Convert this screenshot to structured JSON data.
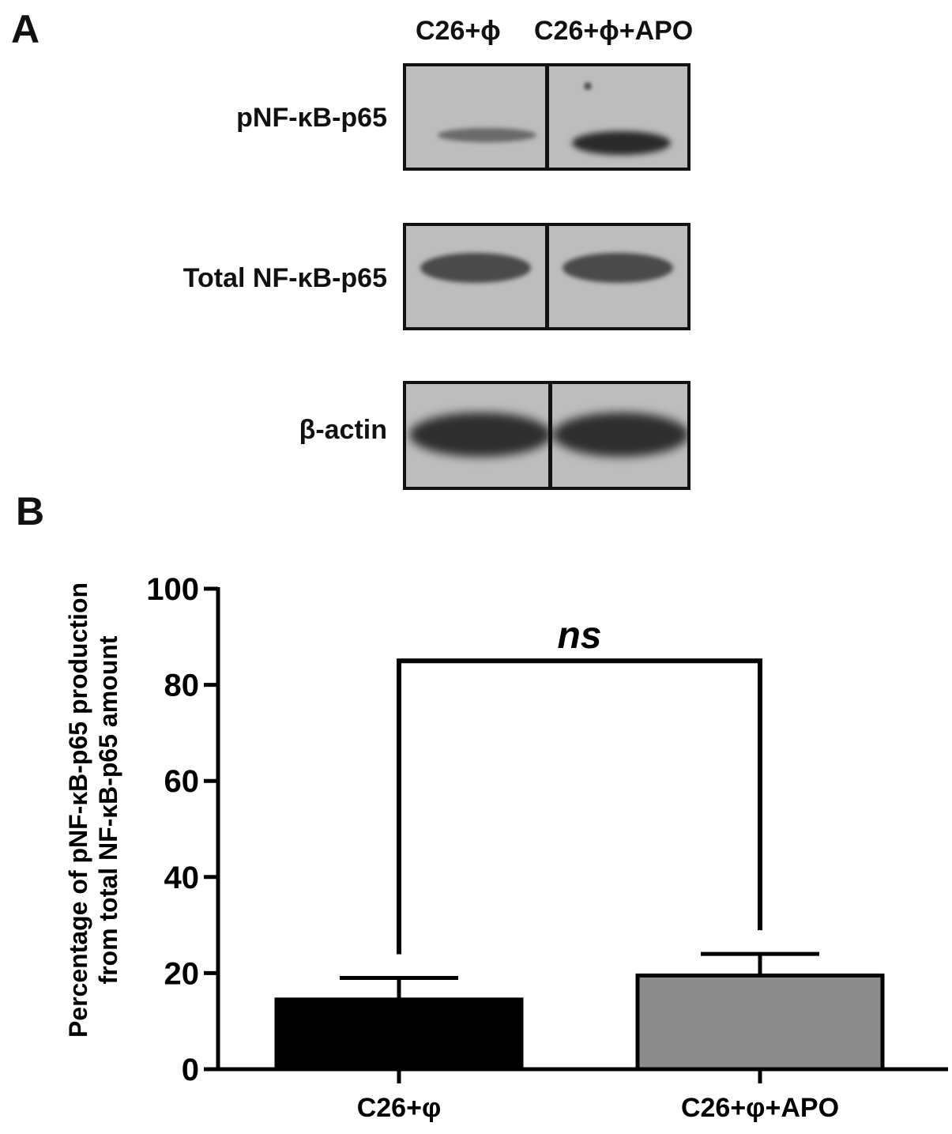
{
  "panel_a": {
    "letter": "A",
    "lanes": [
      "C26+ϕ",
      "C26+ϕ+APO"
    ],
    "blots": [
      {
        "label": "pNF-κB-p65"
      },
      {
        "label": "Total NF-κB-p65"
      },
      {
        "label": "β-actin"
      }
    ]
  },
  "panel_b": {
    "letter": "B"
  },
  "chart_data": {
    "type": "bar",
    "categories": [
      "C26+φ",
      "C26+φ+APO"
    ],
    "values": [
      14.5,
      19.5
    ],
    "errors": [
      4.5,
      4.5
    ],
    "ylim": [
      0,
      100
    ],
    "yticks": [
      0,
      20,
      40,
      60,
      80,
      100
    ],
    "ylabel_line1": "Percentage of pNF-κB-p65 production",
    "ylabel_line2": "from total NF-κB-p65 amount",
    "xlabel": "",
    "title": "",
    "bar_colors": [
      "#000000",
      "#8c8c8c"
    ],
    "significance": {
      "label": "ns",
      "between": [
        0,
        1
      ],
      "bracket_y": 85
    }
  }
}
